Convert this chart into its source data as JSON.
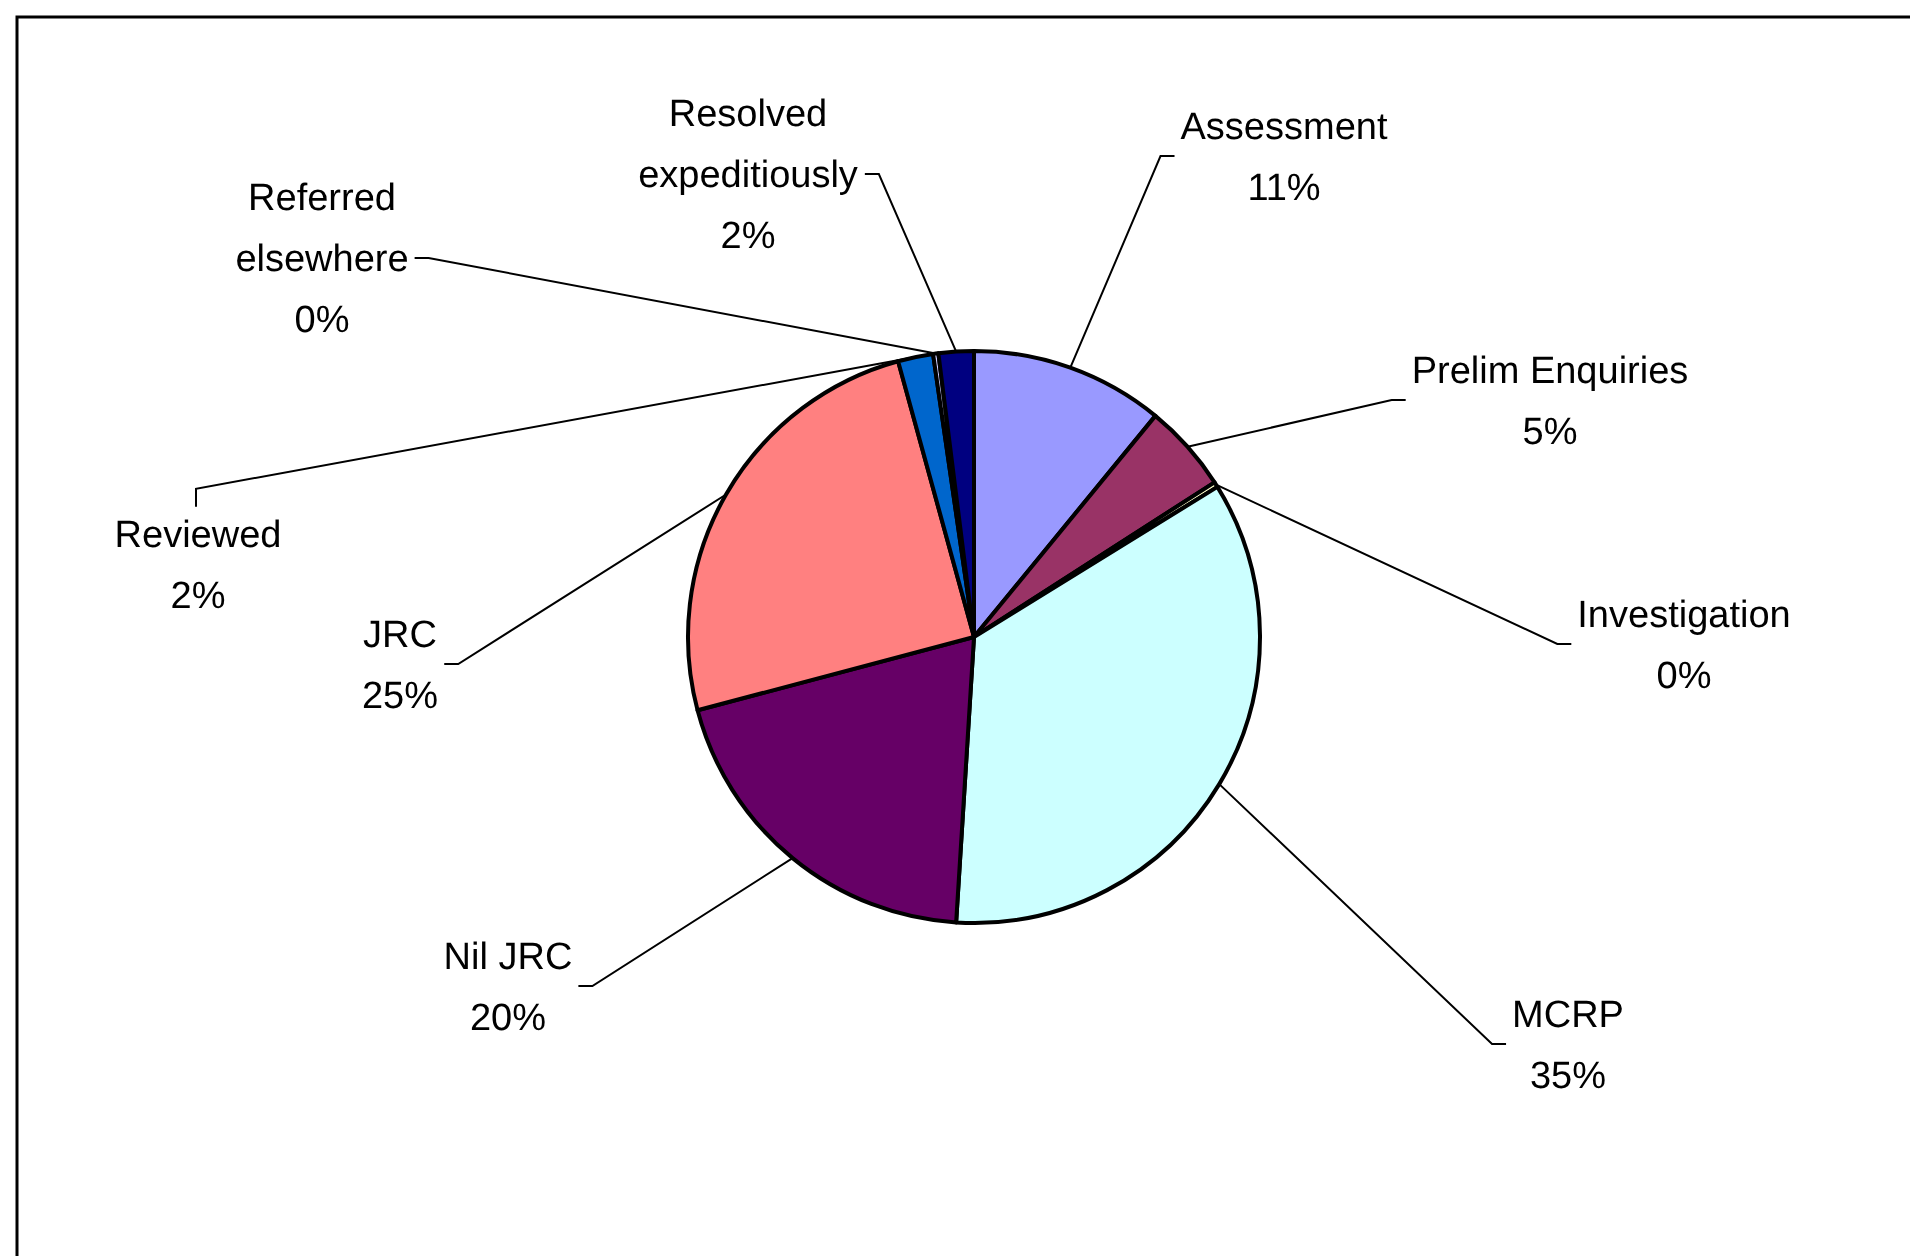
{
  "chart_data": {
    "type": "pie",
    "categories": [
      "Assessment",
      "Prelim Enquiries",
      "Investigation",
      "MCRP",
      "Nil JRC",
      "JRC",
      "Reviewed",
      "Referred elsewhere",
      "Resolved expeditiously"
    ],
    "values": [
      11,
      5,
      0.3,
      35,
      20,
      25,
      2,
      0.3,
      2
    ],
    "value_labels": [
      "11%",
      "5%",
      "0%",
      "35%",
      "20%",
      "25%",
      "2%",
      "0%",
      "2%"
    ],
    "colors": [
      "#9999ff",
      "#993366",
      "#ffffcc",
      "#ccffff",
      "#660066",
      "#ff8080",
      "#0066cc",
      "#ccccff",
      "#000080"
    ]
  }
}
